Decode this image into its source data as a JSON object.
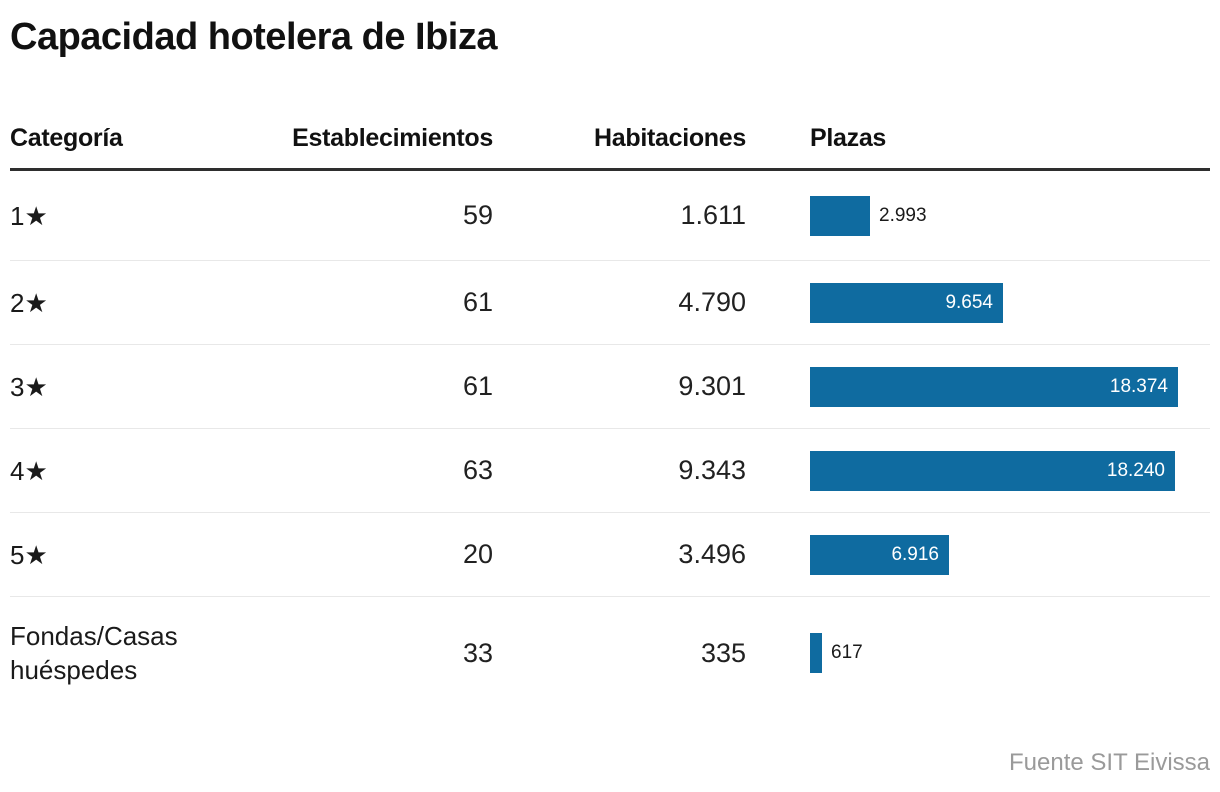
{
  "title": "Capacidad hotelera de Ibiza",
  "source": "Fuente SIT Eivissa",
  "colors": {
    "bar": "#0f6ba0",
    "bar_label_inside": "#ffffff",
    "bar_label_outside": "#1a1a1a",
    "title_text": "#111111",
    "body_text": "#212121",
    "source_text": "#9a9a9a",
    "header_rule": "#2e2e2e",
    "row_divider": "#e8e8e8"
  },
  "table": {
    "headers": [
      "Categoría",
      "Establecimientos",
      "Habitaciones",
      "Plazas"
    ],
    "rows": [
      {
        "category": "1★",
        "establecimientos": "59",
        "habitaciones": "1.611",
        "plazas_value": 2993,
        "plazas_label": "2.993",
        "label_position": "outside"
      },
      {
        "category": "2★",
        "establecimientos": "61",
        "habitaciones": "4.790",
        "plazas_value": 9654,
        "plazas_label": "9.654",
        "label_position": "inside"
      },
      {
        "category": "3★",
        "establecimientos": "61",
        "habitaciones": "9.301",
        "plazas_value": 18374,
        "plazas_label": "18.374",
        "label_position": "inside"
      },
      {
        "category": "4★",
        "establecimientos": "63",
        "habitaciones": "9.343",
        "plazas_value": 18240,
        "plazas_label": "18.240",
        "label_position": "inside"
      },
      {
        "category": "5★",
        "establecimientos": "20",
        "habitaciones": "3.496",
        "plazas_value": 6916,
        "plazas_label": "6.916",
        "label_position": "inside"
      },
      {
        "category": "Fondas/Casas huéspedes",
        "establecimientos": "33",
        "habitaciones": "335",
        "plazas_value": 617,
        "plazas_label": "617",
        "label_position": "outside"
      }
    ]
  },
  "chart_data": {
    "type": "bar",
    "orientation": "horizontal",
    "title": "Capacidad hotelera de Ibiza",
    "categories": [
      "1★",
      "2★",
      "3★",
      "4★",
      "5★",
      "Fondas/Casas huéspedes"
    ],
    "series": [
      {
        "name": "Establecimientos",
        "values": [
          59,
          61,
          61,
          63,
          20,
          33
        ]
      },
      {
        "name": "Habitaciones",
        "values": [
          1611,
          4790,
          9301,
          9343,
          3496,
          335
        ]
      },
      {
        "name": "Plazas",
        "values": [
          2993,
          9654,
          18374,
          18240,
          6916,
          617
        ]
      }
    ],
    "bar_series": "Plazas",
    "xlim": [
      0,
      18374
    ],
    "grid": false,
    "legend": false,
    "source": "Fuente SIT Eivissa"
  }
}
